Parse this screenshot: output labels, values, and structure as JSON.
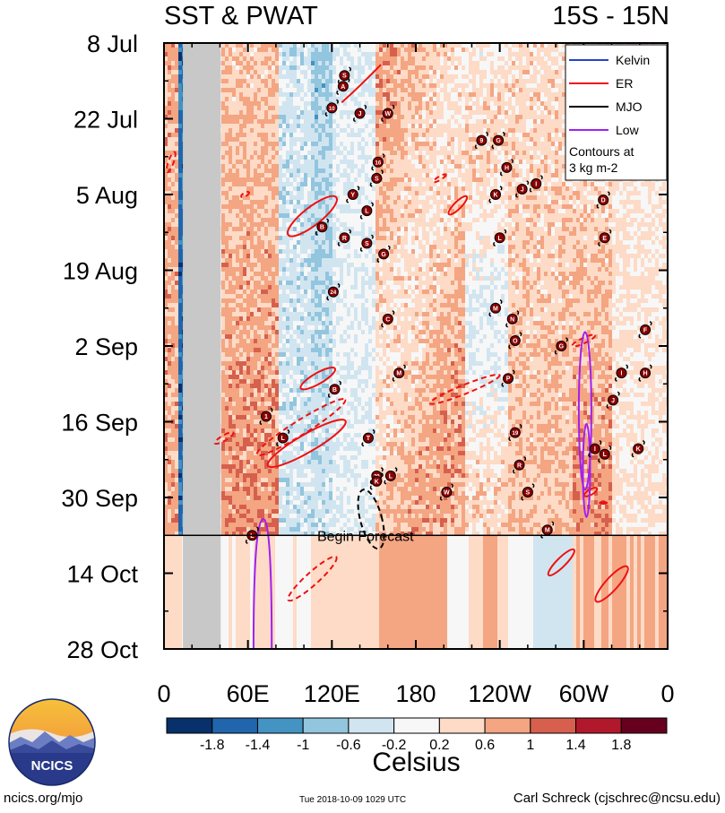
{
  "header": {
    "title_left": "SST & PWAT",
    "title_right": "15S - 15N"
  },
  "footer": {
    "left": "ncics.org/mjo",
    "middle": "Tue 2018-10-09 1029 UTC",
    "right": "Carl Schreck (cjschrec@ncsu.edu)"
  },
  "logo": {
    "text": "NCICS"
  },
  "colors": {
    "kelvin": "#2244cc",
    "er": "#ee1111",
    "mjo": "#000000",
    "low": "#a020f0",
    "missing": "#c8c8c8",
    "storm": "#8b0000"
  },
  "chart_data": {
    "type": "heatmap",
    "title": "SST & PWAT",
    "subtitle": "15S - 15N",
    "x_tick_labels": [
      "0",
      "60E",
      "120E",
      "180",
      "120W",
      "60W",
      "0"
    ],
    "x_range_deg_east": [
      0,
      360
    ],
    "y_tick_labels": [
      "8 Jul",
      "22 Jul",
      "5 Aug",
      "19 Aug",
      "2 Sep",
      "16 Sep",
      "30 Sep",
      "14 Oct",
      "28 Oct"
    ],
    "y_range": [
      "2018-07-08",
      "2018-10-28"
    ],
    "y_direction": "time increases downward",
    "forecast_start": "2018-10-07",
    "forecast_label": "Begin Forecast",
    "colorbar": {
      "label": "Celsius",
      "tick_labels": [
        "-1.8",
        "-1.4",
        "-1",
        "-0.6",
        "-0.2",
        "0.2",
        "0.6",
        "1",
        "1.4",
        "1.8"
      ],
      "colors": [
        "#08306b",
        "#2166ac",
        "#4393c3",
        "#92c5de",
        "#d1e5f0",
        "#f7f7f7",
        "#fddbc7",
        "#f4a582",
        "#d6604d",
        "#b2182b",
        "#67001f"
      ]
    },
    "legend": {
      "placement": "top-right",
      "entries": [
        {
          "name": "Kelvin",
          "color": "#2244cc",
          "style": "solid"
        },
        {
          "name": "ER",
          "color": "#ee1111",
          "style": "solid"
        },
        {
          "name": "MJO",
          "color": "#000000",
          "style": "solid"
        },
        {
          "name": "Low",
          "color": "#a020f0",
          "style": "solid"
        }
      ],
      "note": "Contours at\n3 kg m-2"
    },
    "storms": [
      {
        "id": "S",
        "lon": 129,
        "date": "2018-07-14"
      },
      {
        "id": "A",
        "lon": 128,
        "date": "2018-07-16"
      },
      {
        "id": "10",
        "lon": 120,
        "date": "2018-07-20"
      },
      {
        "id": "J",
        "lon": 140,
        "date": "2018-07-21"
      },
      {
        "id": "W",
        "lon": 160,
        "date": "2018-07-21"
      },
      {
        "id": "9",
        "lon": 227,
        "date": "2018-07-26"
      },
      {
        "id": "G",
        "lon": 239,
        "date": "2018-07-26"
      },
      {
        "id": "16",
        "lon": 153,
        "date": "2018-07-30"
      },
      {
        "id": "S",
        "lon": 152,
        "date": "2018-08-02"
      },
      {
        "id": "H",
        "lon": 245,
        "date": "2018-07-31"
      },
      {
        "id": "Y",
        "lon": 135,
        "date": "2018-08-05"
      },
      {
        "id": "K",
        "lon": 237,
        "date": "2018-08-05"
      },
      {
        "id": "J",
        "lon": 256,
        "date": "2018-08-04"
      },
      {
        "id": "I",
        "lon": 266,
        "date": "2018-08-03"
      },
      {
        "id": "D",
        "lon": 314,
        "date": "2018-08-06"
      },
      {
        "id": "L",
        "lon": 145,
        "date": "2018-08-08"
      },
      {
        "id": "B",
        "lon": 113,
        "date": "2018-08-11"
      },
      {
        "id": "R",
        "lon": 129,
        "date": "2018-08-13"
      },
      {
        "id": "S",
        "lon": 145,
        "date": "2018-08-14"
      },
      {
        "id": "L",
        "lon": 240,
        "date": "2018-08-13"
      },
      {
        "id": "E",
        "lon": 315,
        "date": "2018-08-13"
      },
      {
        "id": "G",
        "lon": 157,
        "date": "2018-08-16"
      },
      {
        "id": "24",
        "lon": 121,
        "date": "2018-08-23"
      },
      {
        "id": "M",
        "lon": 237,
        "date": "2018-08-26"
      },
      {
        "id": "C",
        "lon": 160,
        "date": "2018-08-28"
      },
      {
        "id": "N",
        "lon": 249,
        "date": "2018-08-28"
      },
      {
        "id": "F",
        "lon": 344,
        "date": "2018-08-30"
      },
      {
        "id": "O",
        "lon": 251,
        "date": "2018-09-01"
      },
      {
        "id": "G",
        "lon": 284,
        "date": "2018-09-02"
      },
      {
        "id": "M",
        "lon": 168,
        "date": "2018-09-07"
      },
      {
        "id": "I",
        "lon": 327,
        "date": "2018-09-07"
      },
      {
        "id": "H",
        "lon": 344,
        "date": "2018-09-07"
      },
      {
        "id": "P",
        "lon": 246,
        "date": "2018-09-08"
      },
      {
        "id": "B",
        "lon": 122,
        "date": "2018-09-10"
      },
      {
        "id": "J",
        "lon": 321,
        "date": "2018-09-12"
      },
      {
        "id": "1",
        "lon": 73,
        "date": "2018-09-15"
      },
      {
        "id": "19",
        "lon": 251,
        "date": "2018-09-18"
      },
      {
        "id": "L",
        "lon": 85,
        "date": "2018-09-19"
      },
      {
        "id": "T",
        "lon": 146,
        "date": "2018-09-19"
      },
      {
        "id": "I",
        "lon": 308,
        "date": "2018-09-21"
      },
      {
        "id": "L",
        "lon": 315,
        "date": "2018-09-22"
      },
      {
        "id": "K",
        "lon": 339,
        "date": "2018-09-21"
      },
      {
        "id": "R",
        "lon": 254,
        "date": "2018-09-24"
      },
      {
        "id": "29",
        "lon": 152,
        "date": "2018-09-26"
      },
      {
        "id": "K",
        "lon": 152,
        "date": "2018-09-27"
      },
      {
        "id": "L",
        "lon": 162,
        "date": "2018-09-26"
      },
      {
        "id": "W",
        "lon": 202,
        "date": "2018-09-29"
      },
      {
        "id": "S",
        "lon": 260,
        "date": "2018-09-29"
      },
      {
        "id": "L",
        "lon": 63,
        "date": "2018-10-07"
      },
      {
        "id": "M",
        "lon": 274,
        "date": "2018-10-06"
      }
    ]
  }
}
